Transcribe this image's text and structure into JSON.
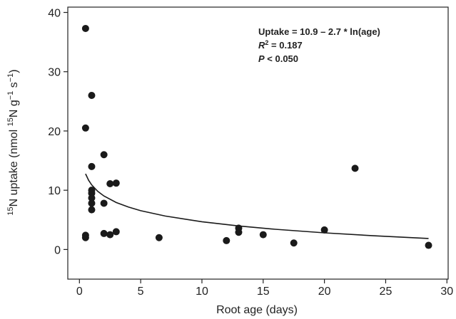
{
  "chart_data": {
    "type": "scatter",
    "x_label": "Root age (days)",
    "y_label_parts": [
      {
        "text": "15",
        "sup": true
      },
      {
        "text": "N uptake (nmol "
      },
      {
        "text": "15",
        "sup": true
      },
      {
        "text": "N g"
      },
      {
        "text": "−1",
        "sup": true
      },
      {
        "text": " s"
      },
      {
        "text": "−1",
        "sup": true
      },
      {
        "text": ")"
      }
    ],
    "annotations": {
      "equation": "Uptake = 10.9 – 2.7 * ln(age)",
      "r2_symbol": "R",
      "r2_sup": "2",
      "r2_value": " = 0.187",
      "p_symbol": "P",
      "p_value": " < 0.050"
    },
    "xlim": [
      -0.95,
      30.1
    ],
    "ylim": [
      -5,
      40.9
    ],
    "xticks": [
      0,
      5,
      10,
      15,
      20,
      25,
      30
    ],
    "yticks": [
      0,
      10,
      20,
      30,
      40
    ],
    "series": [
      {
        "color": "#1a1a1a",
        "x": [
          0.5,
          0.5,
          1,
          1,
          1,
          1,
          1,
          1,
          1,
          0.5,
          0.5,
          2,
          2,
          2,
          2.5,
          2.5,
          3,
          3,
          6.5,
          12,
          13,
          13,
          15,
          17.5,
          20,
          22.5,
          28.5
        ],
        "values": [
          37.3,
          20.5,
          26,
          14,
          10,
          9.5,
          8.7,
          7.8,
          6.7,
          2.4,
          2.0,
          16,
          7.8,
          2.7,
          11.1,
          2.5,
          11.2,
          3,
          2,
          1.5,
          3.6,
          2.9,
          2.5,
          1.1,
          3.3,
          13.7,
          0.7
        ]
      }
    ],
    "fit": {
      "color": "#1a1a1a",
      "x": [
        0.5,
        0.75,
        1,
        1.5,
        2,
        3,
        4,
        5,
        7,
        10,
        13,
        16,
        20,
        24,
        28.5
      ],
      "values": [
        12.77,
        11.68,
        10.9,
        9.81,
        9.03,
        7.93,
        7.16,
        6.55,
        5.65,
        4.68,
        3.97,
        3.41,
        2.81,
        2.32,
        1.86
      ]
    }
  }
}
